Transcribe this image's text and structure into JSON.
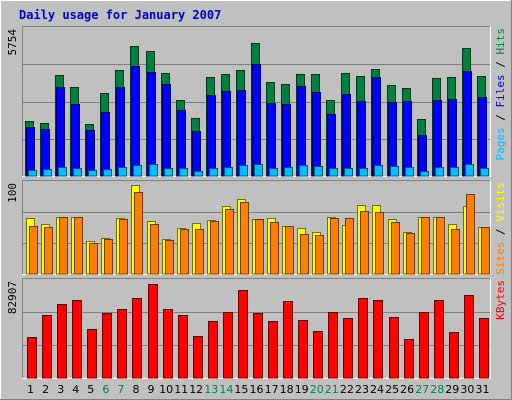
{
  "chart_data": {
    "title": "Daily usage for January 2007",
    "x": [
      1,
      2,
      3,
      4,
      5,
      6,
      7,
      8,
      9,
      10,
      11,
      12,
      13,
      14,
      15,
      16,
      17,
      18,
      19,
      20,
      21,
      22,
      23,
      24,
      25,
      26,
      27,
      28,
      29,
      30,
      31
    ],
    "weekend_days": [
      6,
      7,
      13,
      14,
      20,
      21,
      27,
      28
    ],
    "panels": [
      {
        "type": "bar",
        "max_label": "5754",
        "ymax": 5754,
        "legend": [
          "Pages",
          "Files",
          "Hits"
        ],
        "series": [
          {
            "name": "Hits",
            "color": "#008040",
            "values": [
              2190,
              2110,
              4020,
              3520,
              2050,
              3280,
              4210,
              5160,
              4950,
              4090,
              3030,
              2300,
              3940,
              4040,
              4200,
              5290,
              3720,
              3650,
              4030,
              4040,
              3000,
              4070,
              3970,
              4240,
              3600,
              3500,
              2270,
              3890,
              3920,
              5080,
              3950
            ]
          },
          {
            "name": "Files",
            "color": "#0000ff",
            "values": [
              1950,
              1880,
              3520,
              2850,
              1820,
              2530,
              3530,
              4360,
              4110,
              3650,
              2630,
              1770,
              3220,
              3380,
              3420,
              4430,
              2890,
              2840,
              3580,
              3340,
              2470,
              3240,
              2980,
              3920,
              2920,
              2990,
              1610,
              3000,
              3050,
              4170,
              3120
            ]
          },
          {
            "name": "Pages",
            "color": "#00c0ff",
            "values": [
              240,
              260,
              360,
              330,
              220,
              290,
              350,
              450,
              490,
              330,
              300,
              210,
              300,
              340,
              450,
              490,
              320,
              350,
              450,
              390,
              320,
              320,
              320,
              440,
              380,
              340,
              190,
              350,
              340,
              460,
              300
            ]
          }
        ]
      },
      {
        "type": "bar",
        "max_label": "100",
        "ymax": 100,
        "legend": [
          "Sites",
          "Visits"
        ],
        "series": [
          {
            "name": "Visits",
            "color": "#ffff00",
            "values": [
              63,
              56,
              64,
              64,
              37,
              40,
              63,
              100,
              59,
              39,
              52,
              57,
              61,
              76,
              84,
              62,
              63,
              54,
              52,
              47,
              64,
              55,
              78,
              78,
              62,
              47,
              64,
              64,
              56,
              76,
              53
            ]
          },
          {
            "name": "Sites",
            "color": "#ff8000",
            "values": [
              54,
              53,
              64,
              64,
              35,
              39,
              62,
              92,
              56,
              38,
              50,
              50,
              59,
              73,
              81,
              62,
              58,
              54,
              45,
              44,
              63,
              63,
              71,
              70,
              58,
              46,
              64,
              64,
              51,
              90,
              53
            ]
          }
        ]
      },
      {
        "type": "bar",
        "max_label": "82907",
        "ymax": 82907,
        "legend": [
          "KBytes"
        ],
        "series": [
          {
            "name": "KBytes",
            "color": "#ff0000",
            "values": [
              36000,
              55000,
              65000,
              68000,
              43000,
              57000,
              60000,
              70000,
              82000,
              60000,
              55000,
              37000,
              50000,
              58000,
              77000,
              57000,
              50000,
              67000,
              51000,
              41000,
              58000,
              52000,
              70000,
              68000,
              53000,
              34000,
              58000,
              68000,
              40000,
              72000,
              52000
            ]
          }
        ]
      }
    ]
  }
}
